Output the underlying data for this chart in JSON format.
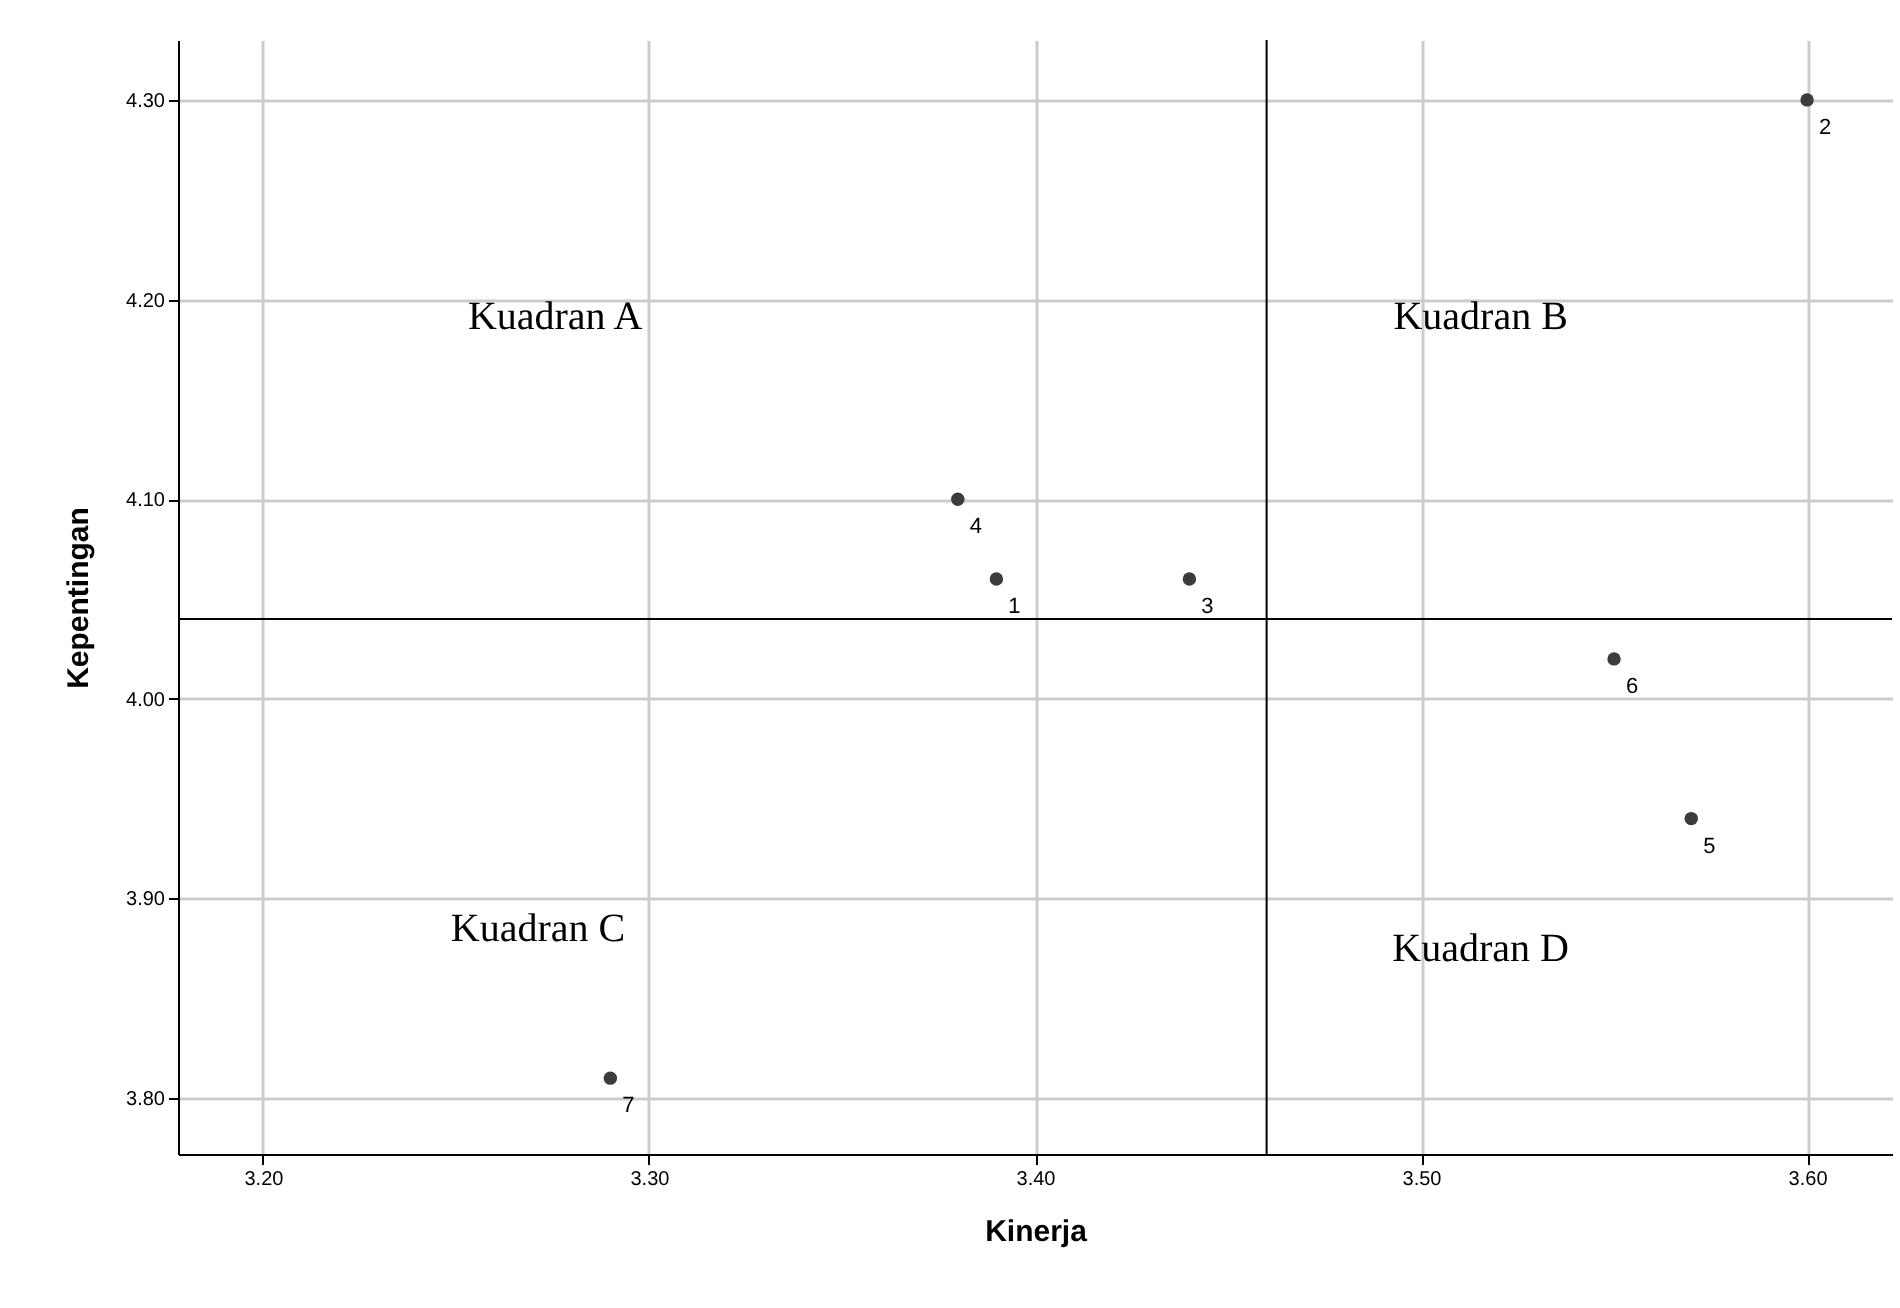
{
  "chart_data": {
    "type": "scatter",
    "xlabel": "Kinerja",
    "ylabel": "Kepentingan",
    "x": [
      3.39,
      3.6,
      3.44,
      3.38,
      3.57,
      3.55,
      3.29
    ],
    "series": [
      {
        "color": "#3c3c3c",
        "values": [
          4.06,
          4.3,
          4.06,
          4.1,
          3.94,
          4.02,
          3.81
        ]
      }
    ],
    "xlim": [
      3.178,
      3.622
    ],
    "ylim": [
      3.772,
      4.33
    ],
    "xticks": [
      {
        "value": 3.2,
        "label": "3.20"
      },
      {
        "value": 3.3,
        "label": "3.30"
      },
      {
        "value": 3.4,
        "label": "3.40"
      },
      {
        "value": 3.5,
        "label": "3.50"
      },
      {
        "value": 3.6,
        "label": "3.60"
      }
    ],
    "yticks": [
      {
        "value": 3.8,
        "label": "3.80"
      },
      {
        "value": 3.9,
        "label": "3.90"
      },
      {
        "value": 4.0,
        "label": "4.00"
      },
      {
        "value": 4.1,
        "label": "4.10"
      },
      {
        "value": 4.2,
        "label": "4.20"
      },
      {
        "value": 4.3,
        "label": "4.30"
      }
    ],
    "ref_lines": [
      {
        "axis": "x",
        "value": 3.46,
        "color": "#000000"
      },
      {
        "axis": "y",
        "value": 4.04,
        "color": "#000000"
      }
    ],
    "annotations": [
      "Kuadran A",
      "Kuadran B",
      "Kuadran C",
      "Kuadran D",
      {
        "text": "1",
        "x": 3.39,
        "y": 4.06
      },
      {
        "text": "2",
        "x": 3.6,
        "y": 4.3
      },
      {
        "text": "3",
        "x": 3.44,
        "y": 4.06
      },
      {
        "text": "4",
        "x": 3.38,
        "y": 4.1
      },
      {
        "text": "5",
        "x": 3.57,
        "y": 3.94
      },
      {
        "text": "6",
        "x": 3.55,
        "y": 4.02
      },
      {
        "text": "7",
        "x": 3.29,
        "y": 3.81
      }
    ],
    "grid": true,
    "marker": "circle"
  }
}
